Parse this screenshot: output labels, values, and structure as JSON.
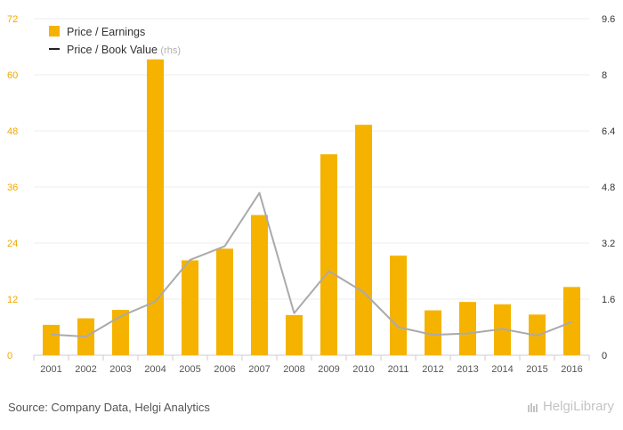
{
  "chart_data": {
    "type": "bar",
    "categories": [
      "2001",
      "2002",
      "2003",
      "2004",
      "2005",
      "2006",
      "2007",
      "2008",
      "2009",
      "2010",
      "2011",
      "2012",
      "2013",
      "2014",
      "2015",
      "2016"
    ],
    "series": [
      {
        "name": "Price / Earnings",
        "type": "bar",
        "axis": "left",
        "color": "#f5b300",
        "values": [
          6.5,
          7.9,
          9.7,
          63.3,
          20.3,
          22.8,
          30.0,
          8.6,
          43.0,
          49.3,
          21.3,
          9.6,
          11.4,
          10.9,
          8.7,
          14.6
        ]
      },
      {
        "name": "Price / Book Value",
        "name_suffix": "(rhs)",
        "type": "line",
        "axis": "right",
        "color": "#aaaaaa",
        "values": [
          0.59,
          0.53,
          1.11,
          1.53,
          2.72,
          3.11,
          4.63,
          1.2,
          2.4,
          1.8,
          0.8,
          0.58,
          0.62,
          0.75,
          0.56,
          0.95
        ]
      }
    ],
    "ylim_left": [
      0,
      72
    ],
    "yticks_left": [
      "0",
      "12",
      "24",
      "36",
      "48",
      "60",
      "72"
    ],
    "ylim_right": [
      0,
      9.6
    ],
    "yticks_right": [
      "0",
      "1.6",
      "3.2",
      "4.8",
      "6.4",
      "8",
      "9.6"
    ],
    "grid": true,
    "legend": "top-left"
  },
  "source": "Source: Company Data, Helgi Analytics",
  "logo_text": "HelgiLibrary"
}
